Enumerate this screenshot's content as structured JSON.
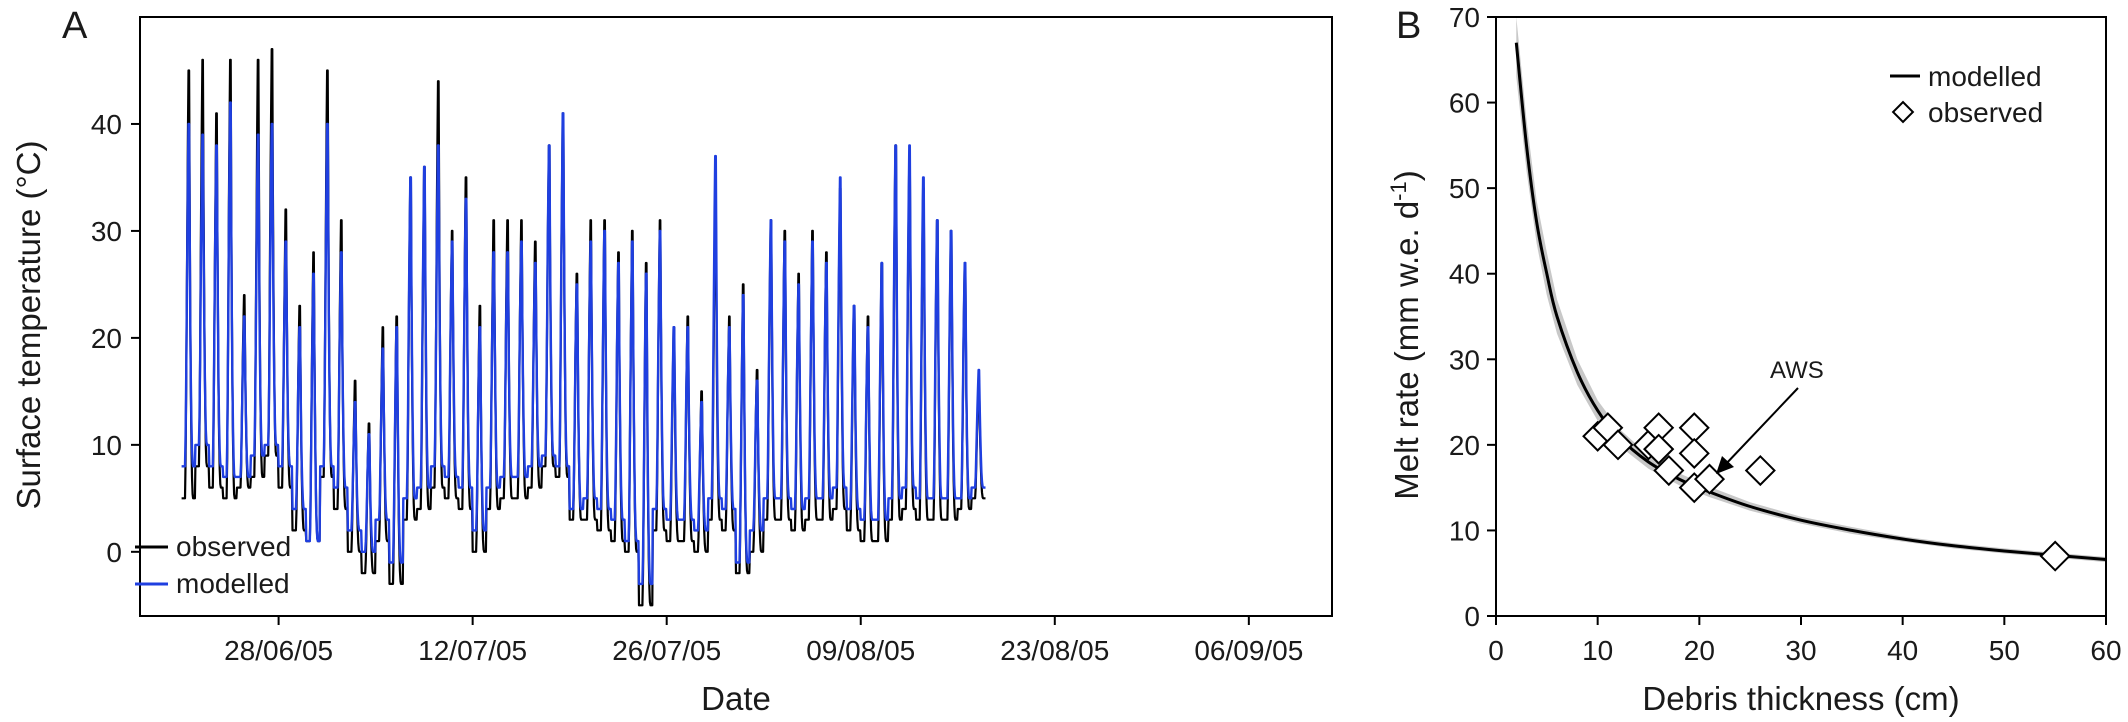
{
  "chart_data": [
    {
      "panel": "A",
      "type": "line",
      "xlabel": "Date",
      "ylabel": "Surface temperature (°C)",
      "ylim": [
        -6,
        50
      ],
      "xlim": [
        "2005-06-18",
        "2005-09-12"
      ],
      "x_ticks": [
        {
          "date": "2005-06-28",
          "label": "28/06/05"
        },
        {
          "date": "2005-07-12",
          "label": "12/07/05"
        },
        {
          "date": "2005-07-26",
          "label": "26/07/05"
        },
        {
          "date": "2005-08-09",
          "label": "09/08/05"
        },
        {
          "date": "2005-08-23",
          "label": "23/08/05"
        },
        {
          "date": "2005-09-06",
          "label": "06/09/05"
        }
      ],
      "y_ticks": [
        0,
        10,
        20,
        30,
        40
      ],
      "grid": false,
      "legend": {
        "placement": "bottom-left",
        "entries": [
          "observed",
          "modelled"
        ]
      },
      "series": [
        {
          "name": "observed",
          "color": "#000000",
          "start_date": "2005-06-21",
          "daily_max": [
            45,
            46,
            41,
            46,
            24,
            46,
            47,
            32,
            23,
            28,
            45,
            31,
            16,
            12,
            21,
            22,
            35,
            36,
            44,
            30,
            35,
            23,
            31,
            31,
            31,
            29,
            38,
            41,
            26,
            31,
            31,
            28,
            30,
            27,
            31,
            21,
            22,
            15,
            33,
            22,
            25,
            17,
            31,
            30,
            26,
            30,
            28,
            34,
            23,
            22,
            27,
            38,
            37,
            34,
            31,
            30,
            27,
            16
          ],
          "daily_min": [
            5,
            8,
            6,
            5,
            6,
            7,
            9,
            6,
            2,
            1,
            7,
            4,
            0,
            -2,
            1,
            -3,
            3,
            4,
            6,
            5,
            4,
            0,
            4,
            5,
            5,
            6,
            8,
            7,
            3,
            3,
            2,
            1,
            0,
            -5,
            2,
            1,
            1,
            0,
            3,
            2,
            -2,
            0,
            3,
            3,
            2,
            3,
            3,
            4,
            2,
            1,
            1,
            3,
            4,
            3,
            3,
            3,
            4,
            5
          ]
        },
        {
          "name": "modelled",
          "color": "#1f3fe0",
          "start_date": "2005-06-21",
          "daily_max": [
            40,
            39,
            38,
            42,
            22,
            39,
            40,
            29,
            21,
            26,
            40,
            28,
            14,
            11,
            19,
            21,
            35,
            36,
            38,
            29,
            33,
            21,
            28,
            28,
            29,
            27,
            38,
            41,
            25,
            29,
            30,
            27,
            29,
            26,
            30,
            21,
            21,
            14,
            37,
            21,
            24,
            16,
            31,
            29,
            25,
            29,
            27,
            35,
            23,
            21,
            27,
            38,
            38,
            35,
            31,
            30,
            27,
            17
          ],
          "daily_min": [
            8,
            10,
            8,
            7,
            7,
            9,
            10,
            8,
            4,
            1,
            8,
            6,
            2,
            0,
            3,
            -1,
            5,
            6,
            8,
            7,
            6,
            2,
            6,
            7,
            7,
            8,
            9,
            8,
            4,
            5,
            4,
            3,
            1,
            -3,
            4,
            3,
            3,
            2,
            5,
            4,
            -1,
            2,
            5,
            5,
            4,
            5,
            5,
            6,
            4,
            3,
            3,
            5,
            6,
            5,
            5,
            5,
            5,
            6
          ]
        }
      ]
    },
    {
      "panel": "B",
      "type": "scatter",
      "xlabel": "Debris thickness (cm)",
      "ylabel": "Melt rate (mm w.e. d",
      "ylabel_sup": "-1",
      "ylabel_end": ")",
      "xlim": [
        0,
        60
      ],
      "ylim": [
        0,
        70
      ],
      "x_ticks": [
        0,
        10,
        20,
        30,
        40,
        50,
        60
      ],
      "y_ticks": [
        0,
        10,
        20,
        30,
        40,
        50,
        60,
        70
      ],
      "grid": false,
      "legend": {
        "placement": "top-right",
        "entries": [
          "modelled",
          "observed"
        ]
      },
      "modelled_curve": {
        "name": "modelled",
        "color": "#000000",
        "band_color": "#c8c8c8",
        "x": [
          2,
          3,
          4,
          5,
          6,
          8,
          10,
          12,
          15,
          18,
          21,
          25,
          30,
          35,
          40,
          45,
          50,
          55,
          60
        ],
        "y": [
          67,
          55,
          46,
          40,
          35,
          28.5,
          24,
          21,
          18,
          16,
          14.5,
          12.8,
          11.2,
          10,
          9,
          8.2,
          7.6,
          7.1,
          6.6
        ],
        "band_lower": [
          63,
          52,
          43.5,
          37.5,
          33,
          27,
          22.8,
          20,
          17.2,
          15.3,
          13.9,
          12.3,
          10.8,
          9.6,
          8.7,
          7.9,
          7.3,
          6.8,
          6.3
        ],
        "band_upper": [
          70,
          58,
          48.5,
          42.5,
          37,
          30,
          25.2,
          22,
          18.8,
          16.7,
          15.1,
          13.3,
          11.6,
          10.4,
          9.3,
          8.5,
          7.9,
          7.4,
          6.9
        ]
      },
      "observed": {
        "name": "observed",
        "x": [
          10,
          11,
          12,
          15,
          16,
          16,
          16,
          17,
          19.5,
          19.5,
          19.5,
          21,
          26,
          55
        ],
        "y": [
          21,
          22,
          20,
          20,
          19.5,
          22,
          19.5,
          17,
          22,
          19,
          15,
          16,
          17,
          7
        ]
      },
      "annotation": {
        "text": "AWS",
        "x": 21,
        "y": 16
      }
    }
  ]
}
